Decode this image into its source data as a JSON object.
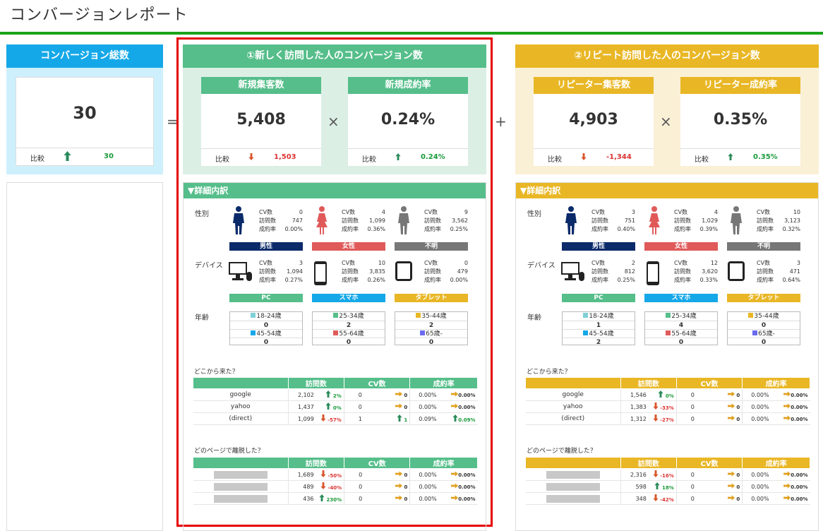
{
  "page": {
    "title": "コンバージョンレポート"
  },
  "colors": {
    "green": "#55be8a",
    "green_bg": "#dcefe5",
    "yellow": "#e9b726",
    "yellow_bg": "#faf0d6",
    "blue": "#15a8e8",
    "blue_bg": "#cdf0fc",
    "male": "#0a2a6a",
    "female": "#e05a5a",
    "unknown": "#777777",
    "red_frame": "#e60000"
  },
  "total": {
    "title": "コンバージョン総数",
    "value": "30",
    "compare_label": "比較",
    "compare_value": "30",
    "compare_dir": "up"
  },
  "operators": {
    "eq": "=",
    "times": "×",
    "plus": "+"
  },
  "new": {
    "title": "①新しく訪問した人のコンバージョン数",
    "visitors": {
      "title": "新規集客数",
      "value": "5,408",
      "compare_label": "比較",
      "compare_value": "1,503",
      "dir": "down"
    },
    "rate": {
      "title": "新規成約率",
      "value": "0.24%",
      "compare_label": "比較",
      "compare_value": "0.24%",
      "dir": "up"
    },
    "detail_title": "▼詳細内訳",
    "gender_label": "性別",
    "device_label": "デバイス",
    "age_label": "年齢",
    "gender": [
      {
        "tag": "男性",
        "cv_label": "CV数",
        "cv": "0",
        "visit_label": "訪問数",
        "visit": "747",
        "rate_label": "成約率",
        "rate": "0.00%"
      },
      {
        "tag": "女性",
        "cv_label": "CV数",
        "cv": "4",
        "visit_label": "訪問数",
        "visit": "1,099",
        "rate_label": "成約率",
        "rate": "0.36%"
      },
      {
        "tag": "不明",
        "cv_label": "CV数",
        "cv": "9",
        "visit_label": "訪問数",
        "visit": "3,562",
        "rate_label": "成約率",
        "rate": "0.25%"
      }
    ],
    "device": [
      {
        "tag": "PC",
        "cv_label": "CV数",
        "cv": "3",
        "visit_label": "訪問数",
        "visit": "1,094",
        "rate_label": "成約率",
        "rate": "0.27%"
      },
      {
        "tag": "スマホ",
        "cv_label": "CV数",
        "cv": "10",
        "visit_label": "訪問数",
        "visit": "3,835",
        "rate_label": "成約率",
        "rate": "0.26%"
      },
      {
        "tag": "タブレット",
        "cv_label": "CV数",
        "cv": "0",
        "visit_label": "訪問数",
        "visit": "479",
        "rate_label": "成約率",
        "rate": "0.00%"
      }
    ],
    "age": [
      {
        "a": "18-24歳",
        "av": "0",
        "b": "45-54歳",
        "bv": "0"
      },
      {
        "a": "25-34歳",
        "av": "2",
        "b": "55-64歳",
        "bv": "0"
      },
      {
        "a": "35-44歳",
        "av": "2",
        "b": "65歳-",
        "bv": "0"
      }
    ],
    "source_title": "どこから来た？",
    "exit_title": "どのページで離脱した？",
    "cols": {
      "visit": "訪問数",
      "cv": "CV数",
      "rate": "成約率"
    },
    "sources": [
      {
        "name": "google",
        "visit": "2,102",
        "vd": "up",
        "vp": "2%",
        "cv": "0",
        "cd": "flat",
        "cp": "0",
        "rate": "0.00%",
        "rd": "flat",
        "rp": "0.00%"
      },
      {
        "name": "yahoo",
        "visit": "1,437",
        "vd": "up",
        "vp": "0%",
        "cv": "0",
        "cd": "flat",
        "cp": "0",
        "rate": "0.00%",
        "rd": "flat",
        "rp": "0.00%"
      },
      {
        "name": "(direct)",
        "visit": "1,099",
        "vd": "down",
        "vp": "-57%",
        "cv": "1",
        "cd": "up",
        "cp": "1",
        "rate": "0.09%",
        "rd": "up",
        "rp": "0.09%"
      }
    ],
    "exits": [
      {
        "visit": "1,689",
        "vd": "down",
        "vp": "-50%",
        "cv": "0",
        "cd": "flat",
        "cp": "0",
        "rate": "0.00%",
        "rd": "flat",
        "rp": "0.00%"
      },
      {
        "visit": "489",
        "vd": "down",
        "vp": "-40%",
        "cv": "0",
        "cd": "flat",
        "cp": "0",
        "rate": "0.00%",
        "rd": "flat",
        "rp": "0.00%"
      },
      {
        "visit": "436",
        "vd": "up",
        "vp": "230%",
        "cv": "0",
        "cd": "flat",
        "cp": "0",
        "rate": "0.00%",
        "rd": "flat",
        "rp": "0.00%"
      }
    ]
  },
  "rep": {
    "title": "②リピート訪問した人のコンバージョン数",
    "visitors": {
      "title": "リピーター集客数",
      "value": "4,903",
      "compare_label": "比較",
      "compare_value": "-1,344",
      "dir": "down"
    },
    "rate": {
      "title": "リピーター成約率",
      "value": "0.35%",
      "compare_label": "比較",
      "compare_value": "0.35%",
      "dir": "up"
    },
    "detail_title": "▼詳細内訳",
    "gender_label": "性別",
    "device_label": "デバイス",
    "age_label": "年齢",
    "gender": [
      {
        "tag": "男性",
        "cv_label": "CV数",
        "cv": "3",
        "visit_label": "訪問数",
        "visit": "751",
        "rate_label": "成約率",
        "rate": "0.40%"
      },
      {
        "tag": "女性",
        "cv_label": "CV数",
        "cv": "4",
        "visit_label": "訪問数",
        "visit": "1,029",
        "rate_label": "成約率",
        "rate": "0.39%"
      },
      {
        "tag": "不明",
        "cv_label": "CV数",
        "cv": "10",
        "visit_label": "訪問数",
        "visit": "3,123",
        "rate_label": "成約率",
        "rate": "0.32%"
      }
    ],
    "device": [
      {
        "tag": "PC",
        "cv_label": "CV数",
        "cv": "2",
        "visit_label": "訪問数",
        "visit": "812",
        "rate_label": "成約率",
        "rate": "0.25%"
      },
      {
        "tag": "スマホ",
        "cv_label": "CV数",
        "cv": "12",
        "visit_label": "訪問数",
        "visit": "3,620",
        "rate_label": "成約率",
        "rate": "0.33%"
      },
      {
        "tag": "タブレット",
        "cv_label": "CV数",
        "cv": "3",
        "visit_label": "訪問数",
        "visit": "471",
        "rate_label": "成約率",
        "rate": "0.64%"
      }
    ],
    "age": [
      {
        "a": "18-24歳",
        "av": "1",
        "b": "45-54歳",
        "bv": "2"
      },
      {
        "a": "25-34歳",
        "av": "4",
        "b": "55-64歳",
        "bv": "0"
      },
      {
        "a": "35-44歳",
        "av": "0",
        "b": "65歳-",
        "bv": "0"
      }
    ],
    "source_title": "どこから来た？",
    "exit_title": "どのページで離脱した？",
    "cols": {
      "visit": "訪問数",
      "cv": "CV数",
      "rate": "成約率"
    },
    "sources": [
      {
        "name": "google",
        "visit": "1,546",
        "vd": "up",
        "vp": "0%",
        "cv": "0",
        "cd": "flat",
        "cp": "0",
        "rate": "0.00%",
        "rd": "flat",
        "rp": "0.00%"
      },
      {
        "name": "yahoo",
        "visit": "1,383",
        "vd": "down",
        "vp": "-33%",
        "cv": "0",
        "cd": "flat",
        "cp": "0",
        "rate": "0.00%",
        "rd": "flat",
        "rp": "0.00%"
      },
      {
        "name": "(direct)",
        "visit": "1,312",
        "vd": "down",
        "vp": "-27%",
        "cv": "0",
        "cd": "flat",
        "cp": "0",
        "rate": "0.00%",
        "rd": "flat",
        "rp": "0.00%"
      }
    ],
    "exits": [
      {
        "visit": "2,316",
        "vd": "down",
        "vp": "-16%",
        "cv": "0",
        "cd": "flat",
        "cp": "0",
        "rate": "0.00%",
        "rd": "flat",
        "rp": "0.00%"
      },
      {
        "visit": "598",
        "vd": "up",
        "vp": "18%",
        "cv": "0",
        "cd": "flat",
        "cp": "0",
        "rate": "0.00%",
        "rd": "flat",
        "rp": "0.00%"
      },
      {
        "visit": "348",
        "vd": "down",
        "vp": "-42%",
        "cv": "0",
        "cd": "flat",
        "cp": "0",
        "rate": "0.00%",
        "rd": "flat",
        "rp": "0.00%"
      }
    ]
  }
}
